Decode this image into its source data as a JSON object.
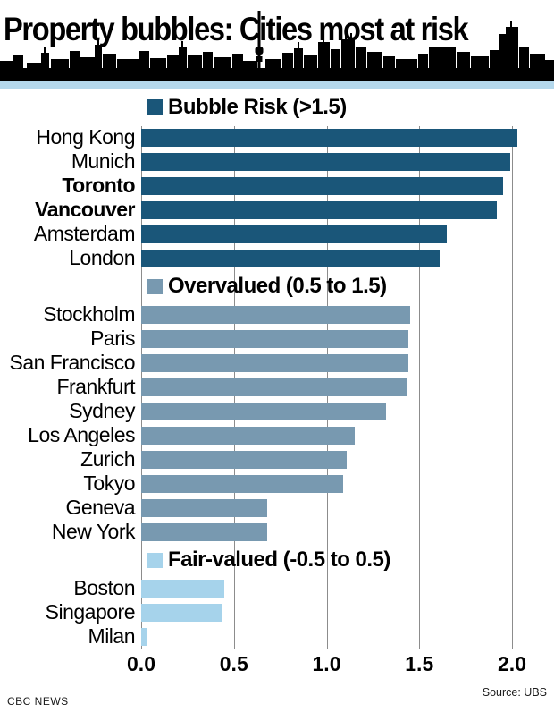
{
  "header": {
    "title": "Property bubbles: Cities most at risk"
  },
  "footer": {
    "left": "CBC NEWS",
    "right": "Source: UBS"
  },
  "colors": {
    "bubble_risk": "#1a5679",
    "overvalued": "#7899b0",
    "fair_valued": "#a6d3eb",
    "band": "#b4d8ec",
    "gridline": "#8c8c8c",
    "skyline": "#000000"
  },
  "chart_data": {
    "type": "bar",
    "orientation": "horizontal",
    "title": "Property bubbles: Cities most at risk",
    "xlabel": "",
    "ylabel": "",
    "xlim": [
      0.0,
      2.0
    ],
    "x_ticks": [
      {
        "label": "0.0",
        "value": 0.0
      },
      {
        "label": "0.5",
        "value": 0.5
      },
      {
        "label": "1.0",
        "value": 1.0
      },
      {
        "label": "1.5",
        "value": 1.5
      },
      {
        "label": "2.0",
        "value": 2.0
      }
    ],
    "grid": "vertical",
    "groups": [
      {
        "legend": "Bubble Risk (>1.5)",
        "color_key": "bubble_risk",
        "bars": [
          {
            "city": "Hong Kong",
            "value": 2.03,
            "bold": false
          },
          {
            "city": "Munich",
            "value": 1.99,
            "bold": false
          },
          {
            "city": "Toronto",
            "value": 1.95,
            "bold": true
          },
          {
            "city": "Vancouver",
            "value": 1.92,
            "bold": true
          },
          {
            "city": "Amsterdam",
            "value": 1.65,
            "bold": false
          },
          {
            "city": "London",
            "value": 1.61,
            "bold": false
          }
        ]
      },
      {
        "legend": "Overvalued (0.5 to 1.5)",
        "color_key": "overvalued",
        "bars": [
          {
            "city": "Stockholm",
            "value": 1.45,
            "bold": false
          },
          {
            "city": "Paris",
            "value": 1.44,
            "bold": false
          },
          {
            "city": "San Francisco",
            "value": 1.44,
            "bold": false
          },
          {
            "city": "Frankfurt",
            "value": 1.43,
            "bold": false
          },
          {
            "city": "Sydney",
            "value": 1.32,
            "bold": false
          },
          {
            "city": "Los Angeles",
            "value": 1.15,
            "bold": false
          },
          {
            "city": "Zurich",
            "value": 1.11,
            "bold": false
          },
          {
            "city": "Tokyo",
            "value": 1.09,
            "bold": false
          },
          {
            "city": "Geneva",
            "value": 0.68,
            "bold": false
          },
          {
            "city": "New York",
            "value": 0.68,
            "bold": false
          }
        ]
      },
      {
        "legend": "Fair-valued (-0.5 to 0.5)",
        "color_key": "fair_valued",
        "bars": [
          {
            "city": "Boston",
            "value": 0.45,
            "bold": false
          },
          {
            "city": "Singapore",
            "value": 0.44,
            "bold": false
          },
          {
            "city": "Milan",
            "value": 0.03,
            "bold": false
          }
        ]
      }
    ]
  }
}
